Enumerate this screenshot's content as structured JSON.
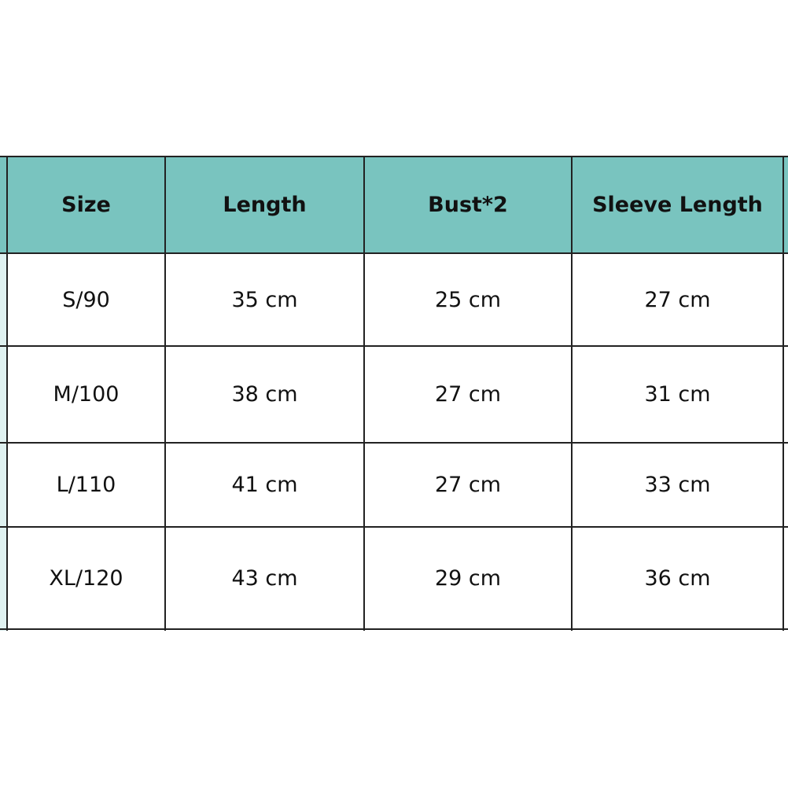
{
  "table": {
    "headers": [
      "Size",
      "Length",
      "Bust*2",
      "Sleeve Length"
    ],
    "rows": [
      [
        "S/90",
        "35 cm",
        "25 cm",
        "27 cm"
      ],
      [
        "M/100",
        "38 cm",
        "27 cm",
        "31 cm"
      ],
      [
        "L/110",
        "41 cm",
        "27 cm",
        "33 cm"
      ],
      [
        "XL/120",
        "43 cm",
        "29 cm",
        "36 cm"
      ]
    ],
    "header_color": "#79c4bf"
  }
}
